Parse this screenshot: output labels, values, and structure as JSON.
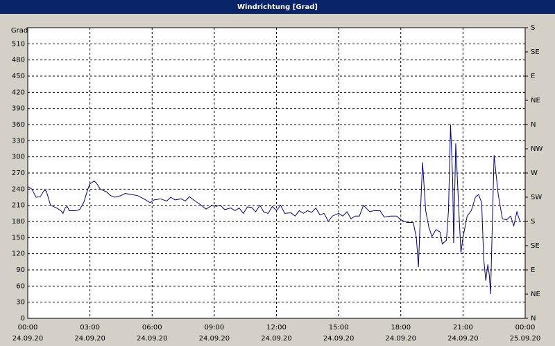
{
  "chart_data": {
    "type": "line",
    "title": "Windrichtung [Grad]",
    "y_label": "Grad",
    "grid": true,
    "xlim": [
      0,
      24
    ],
    "xticks": [
      {
        "value": 0,
        "label": "00:00",
        "date": "24.09.20"
      },
      {
        "value": 3,
        "label": "03:00",
        "date": "24.09.20"
      },
      {
        "value": 6,
        "label": "06:00",
        "date": "24.09.20"
      },
      {
        "value": 9,
        "label": "09:00",
        "date": "24.09.20"
      },
      {
        "value": 12,
        "label": "12:00",
        "date": "24.09.20"
      },
      {
        "value": 15,
        "label": "15:00",
        "date": "24.09.20"
      },
      {
        "value": 18,
        "label": "18:00",
        "date": "24.09.20"
      },
      {
        "value": 21,
        "label": "21:00",
        "date": "24.09.20"
      },
      {
        "value": 24,
        "label": "00:00",
        "date": "25.09.20"
      }
    ],
    "ylim": [
      0,
      540
    ],
    "yticks": [
      0,
      30,
      60,
      90,
      120,
      150,
      180,
      210,
      240,
      270,
      300,
      330,
      360,
      390,
      420,
      450,
      480,
      510
    ],
    "y2lim": [
      0,
      540
    ],
    "y2ticks": [
      {
        "value": 0,
        "label": "N"
      },
      {
        "value": 45,
        "label": "NE"
      },
      {
        "value": 90,
        "label": "E"
      },
      {
        "value": 135,
        "label": "SE"
      },
      {
        "value": 180,
        "label": "S"
      },
      {
        "value": 225,
        "label": "SW"
      },
      {
        "value": 270,
        "label": "W"
      },
      {
        "value": 315,
        "label": "NW"
      },
      {
        "value": 360,
        "label": "N"
      },
      {
        "value": 405,
        "label": "NE"
      },
      {
        "value": 450,
        "label": "E"
      },
      {
        "value": 495,
        "label": "SE"
      },
      {
        "value": 540,
        "label": "S"
      }
    ],
    "series": [
      {
        "color": "#00008b",
        "x": [
          0,
          0.2,
          0.4,
          0.6,
          0.8,
          0.9,
          1.1,
          1.4,
          1.6,
          1.7,
          1.8,
          1.9,
          2.0,
          2.3,
          2.5,
          2.7,
          2.9,
          3.0,
          3.2,
          3.3,
          3.5,
          3.8,
          4.0,
          4.2,
          4.5,
          4.7,
          5.0,
          5.3,
          5.6,
          5.9,
          6.1,
          6.4,
          6.7,
          6.9,
          7.1,
          7.4,
          7.6,
          7.8,
          8.0,
          8.3,
          8.6,
          8.9,
          9.1,
          9.3,
          9.5,
          9.8,
          10.0,
          10.2,
          10.4,
          10.6,
          10.8,
          11.0,
          11.2,
          11.4,
          11.6,
          11.8,
          12.0,
          12.2,
          12.4,
          12.7,
          12.9,
          13.1,
          13.3,
          13.5,
          13.7,
          13.9,
          14.1,
          14.3,
          14.5,
          14.7,
          15.0,
          15.2,
          15.4,
          15.6,
          15.8,
          16.0,
          16.2,
          16.5,
          16.7,
          17.0,
          17.2,
          17.5,
          17.8,
          18.0,
          18.3,
          18.6,
          18.75,
          18.85,
          18.95,
          19.05,
          19.2,
          19.35,
          19.5,
          19.7,
          19.9,
          20.0,
          20.2,
          20.3,
          20.4,
          20.5,
          20.55,
          20.65,
          20.8,
          20.9,
          21.0,
          21.2,
          21.4,
          21.6,
          21.75,
          21.9,
          22.0,
          22.1,
          22.2,
          22.27,
          22.33,
          22.5,
          22.7,
          22.9,
          23.1,
          23.3,
          23.45,
          23.6,
          23.75
        ],
        "values": [
          245,
          240,
          225,
          226,
          238,
          236,
          210,
          205,
          200,
          195,
          205,
          208,
          200,
          200,
          202,
          215,
          240,
          250,
          255,
          252,
          240,
          235,
          228,
          225,
          228,
          232,
          230,
          228,
          222,
          215,
          220,
          222,
          218,
          225,
          220,
          222,
          218,
          226,
          220,
          212,
          203,
          210,
          208,
          210,
          202,
          205,
          200,
          205,
          195,
          207,
          206,
          198,
          210,
          197,
          195,
          208,
          200,
          210,
          195,
          196,
          190,
          200,
          195,
          200,
          197,
          205,
          192,
          195,
          180,
          190,
          195,
          190,
          198,
          185,
          190,
          190,
          210,
          198,
          200,
          200,
          188,
          190,
          190,
          183,
          178,
          178,
          150,
          95,
          200,
          290,
          200,
          170,
          152,
          165,
          160,
          138,
          145,
          200,
          360,
          260,
          140,
          325,
          200,
          122,
          150,
          190,
          200,
          225,
          230,
          215,
          110,
          70,
          100,
          80,
          45,
          303,
          230,
          185,
          183,
          190,
          172,
          198,
          180
        ]
      }
    ]
  }
}
